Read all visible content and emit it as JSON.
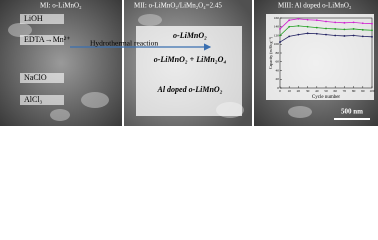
{
  "panel1": {
    "title": "MI: o-LiMnO₂",
    "reagents": [
      "LiOH",
      "EDTA→Mn²⁺",
      "NaClO",
      "AlCl₃"
    ]
  },
  "panel2": {
    "title": "MII: o-LiMnO₂/LiMn₂O₄=2.45",
    "arrow_label": "Hydrothermal reaction",
    "products": [
      "o-LiMnO₂",
      "o-LiMnO₂ + LiMn₂O₄",
      "Al doped o-LiMnO₂"
    ]
  },
  "panel3": {
    "title": "MIII: Al doped o-LiMnO₂",
    "scale_bar": "500 nm"
  },
  "chart_data": {
    "type": "line",
    "xlabel": "Cycle number",
    "ylabel": "Capacity (mAh g⁻¹)",
    "x": [
      0,
      10,
      20,
      30,
      40,
      50,
      60,
      70,
      80,
      90,
      100
    ],
    "xlim": [
      0,
      100
    ],
    "xticks": [
      0,
      10,
      20,
      30,
      40,
      50,
      60,
      70,
      80,
      90,
      100
    ],
    "ylim": [
      0,
      160
    ],
    "yticks": [
      0,
      20,
      40,
      60,
      80,
      100,
      120,
      140,
      160
    ],
    "series": [
      {
        "color": "#d020d0",
        "values": [
          135,
          155,
          158,
          156,
          155,
          152,
          150,
          149,
          150,
          148,
          147
        ]
      },
      {
        "color": "#20a020",
        "values": [
          120,
          140,
          142,
          140,
          138,
          136,
          135,
          134,
          135,
          133,
          132
        ]
      },
      {
        "color": "#202060",
        "values": [
          105,
          118,
          122,
          125,
          124,
          122,
          120,
          119,
          120,
          118,
          117
        ]
      }
    ]
  }
}
